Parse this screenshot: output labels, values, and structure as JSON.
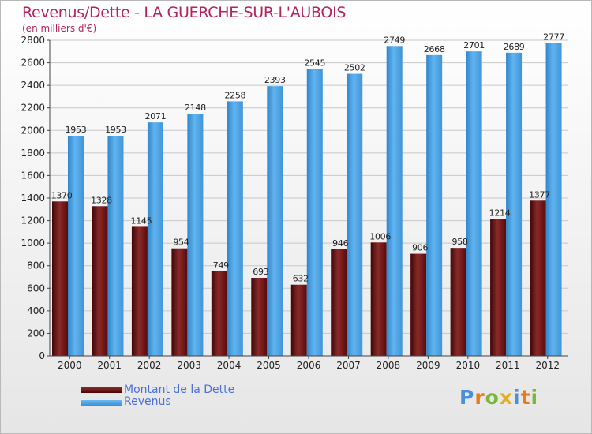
{
  "title": "Revenus/Dette - LA GUERCHE-SUR-L'AUBOIS",
  "subtitle": "(en milliers d'€)",
  "colors": {
    "debt": "#7a1a1a",
    "revenue": "#4fa3e3",
    "title": "#b3245f",
    "legend_text": "#4a6fd8"
  },
  "legend": [
    {
      "label": "Montant de la Dette",
      "color": "#6b0d0d"
    },
    {
      "label": "Revenus",
      "color": "#4fa3e3"
    }
  ],
  "logo": {
    "text": "Proxiti"
  },
  "chart_data": {
    "type": "bar",
    "title": "Revenus/Dette - LA GUERCHE-SUR-L'AUBOIS",
    "ylabel": "(en milliers d'€)",
    "xlabel": "",
    "ylim": [
      0,
      2800
    ],
    "ytick_step": 200,
    "grid": true,
    "categories": [
      "2000",
      "2001",
      "2002",
      "2003",
      "2004",
      "2005",
      "2006",
      "2007",
      "2008",
      "2009",
      "2010",
      "2011",
      "2012"
    ],
    "series": [
      {
        "name": "Montant de la Dette",
        "values": [
          1370,
          1328,
          1145,
          954,
          749,
          693,
          632,
          946,
          1006,
          906,
          958,
          1214,
          1377
        ]
      },
      {
        "name": "Revenus",
        "values": [
          1953,
          1953,
          2071,
          2148,
          2258,
          2393,
          2545,
          2502,
          2749,
          2668,
          2701,
          2689,
          2777
        ]
      }
    ]
  }
}
